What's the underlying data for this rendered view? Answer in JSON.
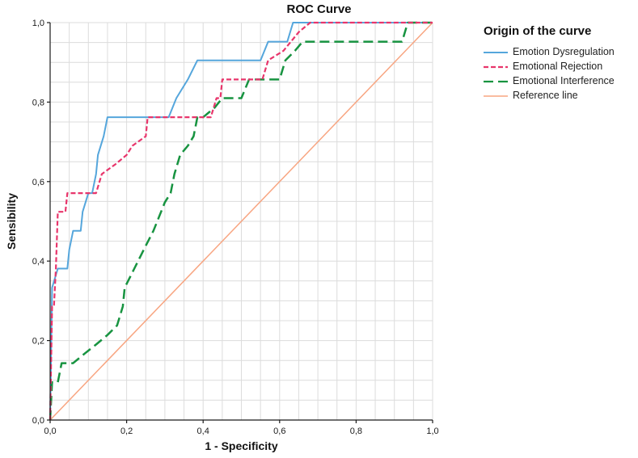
{
  "chart_data": {
    "type": "line",
    "title": "ROC Curve",
    "xlabel": "1 - Specificity",
    "ylabel": "Sensibility",
    "legend_title": "Origin of the curve",
    "legend_position": "right",
    "xlim": [
      0,
      1
    ],
    "ylim": [
      0,
      1
    ],
    "x_tick_labels": [
      "0,0",
      "0,2",
      "0,4",
      "0,6",
      "0,8",
      "1,0"
    ],
    "y_tick_labels": [
      "0,0",
      "0,2",
      "0,4",
      "0,6",
      "0,8",
      "1,0"
    ],
    "grid": true,
    "grid_step": 0.05,
    "grid_color": "#dcdcdc",
    "axis_color": "#1a1a1a",
    "series": [
      {
        "name": "Emotion Dysregulation",
        "color": "#55a6dc",
        "dash": "none",
        "width": 2,
        "points": [
          [
            0,
            0
          ],
          [
            0.005,
            0.333
          ],
          [
            0.02,
            0.381
          ],
          [
            0.045,
            0.381
          ],
          [
            0.05,
            0.429
          ],
          [
            0.06,
            0.476
          ],
          [
            0.08,
            0.476
          ],
          [
            0.085,
            0.524
          ],
          [
            0.1,
            0.571
          ],
          [
            0.11,
            0.571
          ],
          [
            0.12,
            0.619
          ],
          [
            0.125,
            0.667
          ],
          [
            0.14,
            0.714
          ],
          [
            0.15,
            0.762
          ],
          [
            0.31,
            0.762
          ],
          [
            0.33,
            0.81
          ],
          [
            0.36,
            0.857
          ],
          [
            0.385,
            0.905
          ],
          [
            0.55,
            0.905
          ],
          [
            0.57,
            0.952
          ],
          [
            0.62,
            0.952
          ],
          [
            0.635,
            1
          ],
          [
            1,
            1
          ]
        ]
      },
      {
        "name": "Emotional Rejection",
        "color": "#e8356b",
        "dash": "6,3",
        "width": 2.2,
        "points": [
          [
            0,
            0
          ],
          [
            0.005,
            0.286
          ],
          [
            0.01,
            0.286
          ],
          [
            0.015,
            0.381
          ],
          [
            0.02,
            0.524
          ],
          [
            0.04,
            0.524
          ],
          [
            0.045,
            0.571
          ],
          [
            0.12,
            0.571
          ],
          [
            0.135,
            0.619
          ],
          [
            0.17,
            0.643
          ],
          [
            0.2,
            0.667
          ],
          [
            0.215,
            0.69
          ],
          [
            0.25,
            0.714
          ],
          [
            0.255,
            0.762
          ],
          [
            0.42,
            0.762
          ],
          [
            0.435,
            0.81
          ],
          [
            0.445,
            0.81
          ],
          [
            0.45,
            0.857
          ],
          [
            0.555,
            0.857
          ],
          [
            0.57,
            0.905
          ],
          [
            0.61,
            0.929
          ],
          [
            0.65,
            0.976
          ],
          [
            0.68,
            1
          ],
          [
            1,
            1
          ]
        ]
      },
      {
        "name": "Emotional Interference",
        "color": "#179340",
        "dash": "12,6",
        "width": 2.5,
        "points": [
          [
            0,
            0
          ],
          [
            0.005,
            0.095
          ],
          [
            0.02,
            0.095
          ],
          [
            0.03,
            0.143
          ],
          [
            0.06,
            0.143
          ],
          [
            0.09,
            0.167
          ],
          [
            0.12,
            0.19
          ],
          [
            0.15,
            0.214
          ],
          [
            0.175,
            0.238
          ],
          [
            0.19,
            0.286
          ],
          [
            0.195,
            0.333
          ],
          [
            0.22,
            0.381
          ],
          [
            0.245,
            0.429
          ],
          [
            0.27,
            0.476
          ],
          [
            0.29,
            0.524
          ],
          [
            0.3,
            0.548
          ],
          [
            0.315,
            0.571
          ],
          [
            0.325,
            0.619
          ],
          [
            0.34,
            0.667
          ],
          [
            0.36,
            0.69
          ],
          [
            0.375,
            0.714
          ],
          [
            0.385,
            0.762
          ],
          [
            0.4,
            0.762
          ],
          [
            0.43,
            0.786
          ],
          [
            0.45,
            0.81
          ],
          [
            0.5,
            0.81
          ],
          [
            0.52,
            0.857
          ],
          [
            0.6,
            0.857
          ],
          [
            0.615,
            0.905
          ],
          [
            0.64,
            0.929
          ],
          [
            0.66,
            0.952
          ],
          [
            0.92,
            0.952
          ],
          [
            0.935,
            1
          ],
          [
            1,
            1
          ]
        ]
      },
      {
        "name": "Reference line",
        "color": "#f8a581",
        "dash": "none",
        "width": 1.5,
        "points": [
          [
            0,
            0
          ],
          [
            1,
            1
          ]
        ]
      }
    ]
  }
}
